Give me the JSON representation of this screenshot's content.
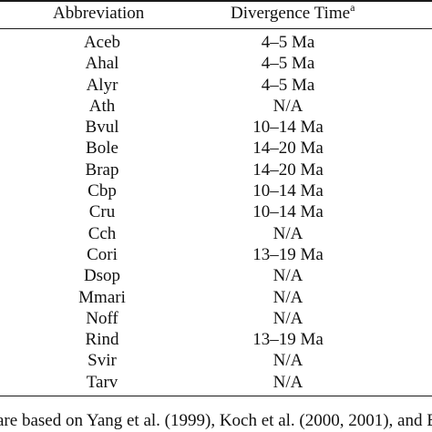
{
  "table": {
    "headers": {
      "abbreviation": "Abbreviation",
      "divergence": "Divergence Time",
      "divergence_marker": "a"
    },
    "rows": [
      {
        "abbr": "Aceb",
        "time": "4–5 Ma"
      },
      {
        "abbr": "Ahal",
        "time": "4–5 Ma"
      },
      {
        "abbr": "Alyr",
        "time": "4–5 Ma"
      },
      {
        "abbr": "Ath",
        "time": "N/A"
      },
      {
        "abbr": "Bvul",
        "time": "10–14 Ma"
      },
      {
        "abbr": "Bole",
        "time": "14–20 Ma"
      },
      {
        "abbr": "Brap",
        "time": "14–20 Ma"
      },
      {
        "abbr": "Cbp",
        "time": "10–14 Ma"
      },
      {
        "abbr": "Cru",
        "time": "10–14 Ma"
      },
      {
        "abbr": "Cch",
        "time": "N/A"
      },
      {
        "abbr": "Cori",
        "time": "13–19 Ma"
      },
      {
        "abbr": "Dsop",
        "time": "N/A"
      },
      {
        "abbr": "Mmari",
        "time": "N/A"
      },
      {
        "abbr": "Noff",
        "time": "N/A"
      },
      {
        "abbr": "Rind",
        "time": "13–19 Ma"
      },
      {
        "abbr": "Svir",
        "time": "N/A"
      },
      {
        "abbr": "Tarv",
        "time": "N/A"
      }
    ],
    "footnote": "are based on Yang et al. (1999), Koch et al. (2000, 2001), and B"
  }
}
